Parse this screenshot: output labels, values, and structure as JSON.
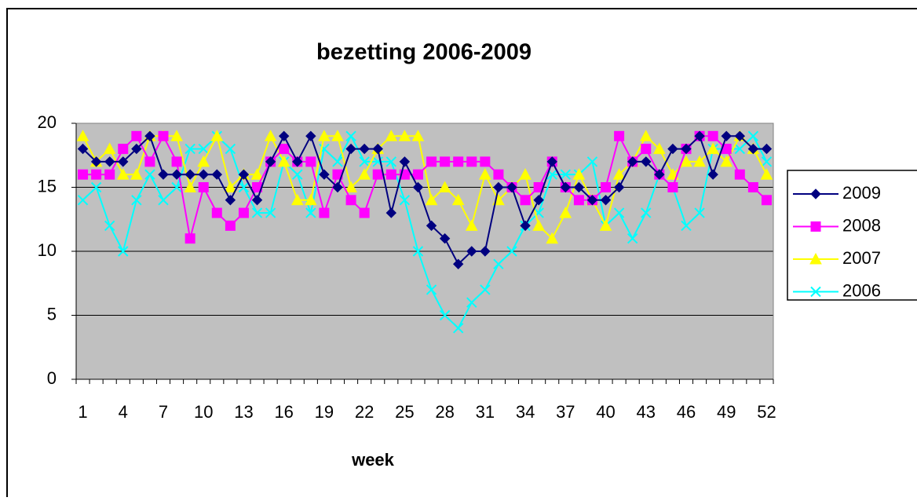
{
  "chart_data": {
    "type": "line",
    "title": "bezetting  2006-2009",
    "x_label": "week",
    "categories": [
      "1",
      null,
      null,
      "4",
      null,
      null,
      "7",
      null,
      null,
      "10",
      null,
      null,
      "13",
      null,
      null,
      "16",
      null,
      null,
      "19",
      null,
      null,
      "22",
      null,
      null,
      "25",
      null,
      null,
      "28",
      null,
      null,
      "31",
      null,
      null,
      "34",
      null,
      null,
      "37",
      null,
      null,
      "40",
      null,
      null,
      "43",
      null,
      null,
      "46",
      null,
      null,
      "49",
      null,
      null,
      "52"
    ],
    "ylim": [
      0,
      20
    ],
    "yticks": [
      0,
      5,
      10,
      15,
      20
    ],
    "grid": true,
    "legend": "right",
    "series": [
      {
        "name": "2009",
        "color": "#000080",
        "marker": "diamond",
        "values": [
          18,
          17,
          17,
          17,
          18,
          19,
          16,
          16,
          16,
          16,
          16,
          14,
          16,
          14,
          17,
          19,
          17,
          19,
          16,
          15,
          18,
          18,
          18,
          13,
          17,
          15,
          12,
          11,
          9,
          10,
          10,
          15,
          15,
          12,
          14,
          17,
          15,
          15,
          14,
          14,
          15,
          17,
          17,
          16,
          18,
          18,
          19,
          16,
          19,
          19,
          18,
          18
        ]
      },
      {
        "name": "2008",
        "color": "#ff00ff",
        "marker": "square",
        "values": [
          16,
          16,
          16,
          18,
          19,
          17,
          19,
          17,
          11,
          15,
          13,
          12,
          13,
          15,
          17,
          18,
          17,
          17,
          13,
          16,
          14,
          13,
          16,
          16,
          16,
          16,
          17,
          17,
          17,
          17,
          17,
          16,
          15,
          14,
          15,
          17,
          15,
          14,
          14,
          15,
          19,
          17,
          18,
          16,
          15,
          18,
          19,
          19,
          18,
          16,
          15,
          14
        ]
      },
      {
        "name": "2007",
        "color": "#ffff00",
        "marker": "triangle",
        "values": [
          19,
          17,
          18,
          16,
          16,
          19,
          19,
          19,
          15,
          17,
          19,
          15,
          16,
          16,
          19,
          17,
          14,
          14,
          19,
          19,
          15,
          16,
          18,
          19,
          19,
          19,
          14,
          15,
          14,
          12,
          16,
          14,
          15,
          16,
          12,
          11,
          13,
          16,
          14,
          12,
          16,
          17,
          19,
          18,
          16,
          17,
          17,
          18,
          17,
          19,
          18,
          16
        ]
      },
      {
        "name": "2006",
        "color": "#00ffff",
        "marker": "x",
        "values": [
          14,
          15,
          12,
          10,
          14,
          16,
          14,
          15,
          18,
          18,
          19,
          18,
          15,
          13,
          13,
          17,
          16,
          13,
          18,
          17,
          19,
          17,
          17,
          17,
          14,
          10,
          7,
          5,
          4,
          6,
          7,
          9,
          10,
          12,
          13,
          16,
          16,
          16,
          17,
          12,
          13,
          11,
          13,
          16,
          15,
          12,
          13,
          18,
          18,
          18,
          19,
          17
        ]
      }
    ]
  }
}
